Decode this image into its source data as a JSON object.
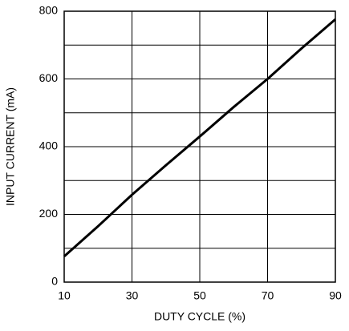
{
  "chart_data": {
    "type": "line",
    "x": [
      10,
      20,
      30,
      40,
      50,
      60,
      70,
      80,
      90
    ],
    "series": [
      {
        "color": "#000000",
        "values": [
          76,
          165,
          258,
          345,
          430,
          517,
          600,
          690,
          776
        ]
      }
    ],
    "xlabel": "DUTY CYCLE (%)",
    "ylabel": "INPUT CURRENT (mA)",
    "xlim": [
      10,
      90
    ],
    "xticks": [
      10,
      30,
      50,
      70,
      90
    ],
    "ylim": [
      0,
      800
    ],
    "yticks": [
      0,
      200,
      400,
      600,
      800
    ],
    "yminor_ticks": [
      100,
      300,
      500,
      700
    ],
    "grid": true
  }
}
